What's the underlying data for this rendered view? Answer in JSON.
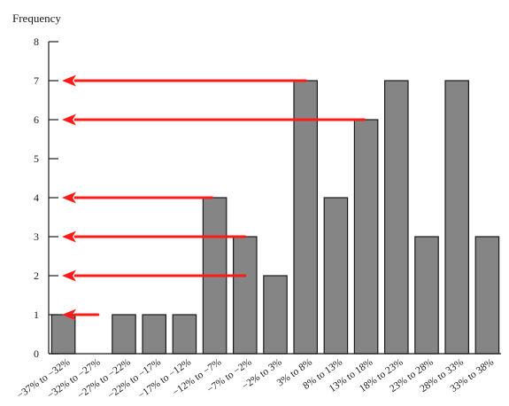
{
  "chart_data": {
    "type": "bar",
    "ylabel": "Frequency",
    "xlabel": "",
    "ylim": [
      0,
      8
    ],
    "yticks": [
      0,
      1,
      2,
      3,
      4,
      5,
      6,
      7,
      8
    ],
    "categories": [
      "−37% to −32%",
      "−32% to −27%",
      "−27% to −22%",
      "−22% to −17%",
      "−17% to −12%",
      "−12% to −7%",
      "−7% to −2%",
      "−2% to 3%",
      "3% to 8%",
      "8% to 13%",
      "13% to 18%",
      "18% to 23%",
      "23% to 28%",
      "28% to 33%",
      "33% to 38%"
    ],
    "values": [
      1,
      0,
      1,
      1,
      1,
      4,
      3,
      2,
      7,
      4,
      6,
      7,
      3,
      7,
      3
    ],
    "grid": false,
    "bar_color": "#858585",
    "annotations": [
      {
        "type": "arrow",
        "from_category": 1,
        "to_y": 1,
        "color": "#ff1a1a"
      },
      {
        "type": "arrow",
        "from_category": 6,
        "to_y": 2,
        "color": "#ff1a1a"
      },
      {
        "type": "arrow",
        "from_category": 6,
        "to_y": 3,
        "color": "#ff1a1a"
      },
      {
        "type": "arrow",
        "from_category": 5,
        "to_y": 4,
        "color": "#ff1a1a"
      },
      {
        "type": "arrow",
        "from_category": 10,
        "to_y": 6,
        "color": "#ff1a1a"
      },
      {
        "type": "arrow",
        "from_category": 8,
        "to_y": 7,
        "color": "#ff1a1a"
      }
    ]
  }
}
